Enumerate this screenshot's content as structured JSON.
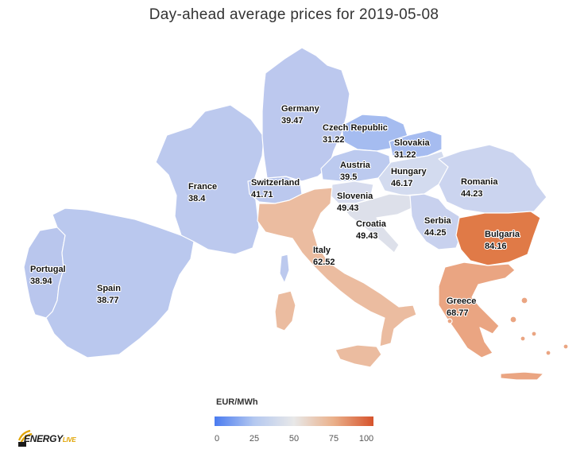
{
  "title": "Day-ahead average prices for 2019-05-08",
  "legend": {
    "title": "EUR/MWh",
    "ticks": [
      "0",
      "25",
      "50",
      "75",
      "100"
    ],
    "range": [
      0,
      100
    ],
    "colors": [
      "#4a7bf0",
      "#b4c8f0",
      "#e8e8e8",
      "#eab08a",
      "#d6532c"
    ]
  },
  "countries": [
    {
      "id": "portugal",
      "name": "Portugal",
      "value": "38.94"
    },
    {
      "id": "spain",
      "name": "Spain",
      "value": "38.77"
    },
    {
      "id": "france",
      "name": "France",
      "value": "38.4"
    },
    {
      "id": "germany",
      "name": "Germany",
      "value": "39.47"
    },
    {
      "id": "czech",
      "name": "Czech Republic",
      "value": "31.22"
    },
    {
      "id": "slovakia",
      "name": "Slovakia",
      "value": "31.22"
    },
    {
      "id": "austria",
      "name": "Austria",
      "value": "39.5"
    },
    {
      "id": "switzerland",
      "name": "Switzerland",
      "value": "41.71"
    },
    {
      "id": "hungary",
      "name": "Hungary",
      "value": "46.17"
    },
    {
      "id": "romania",
      "name": "Romania",
      "value": "44.23"
    },
    {
      "id": "slovenia",
      "name": "Slovenia",
      "value": "49.43"
    },
    {
      "id": "croatia",
      "name": "Croatia",
      "value": "49.43"
    },
    {
      "id": "serbia",
      "name": "Serbia",
      "value": "44.25"
    },
    {
      "id": "bulgaria",
      "name": "Bulgaria",
      "value": "84.16"
    },
    {
      "id": "italy",
      "name": "Italy",
      "value": "62.52"
    },
    {
      "id": "greece",
      "name": "Greece",
      "value": "68.77"
    }
  ],
  "logo": {
    "main": "ENERGY",
    "sub": "LIVE"
  }
}
